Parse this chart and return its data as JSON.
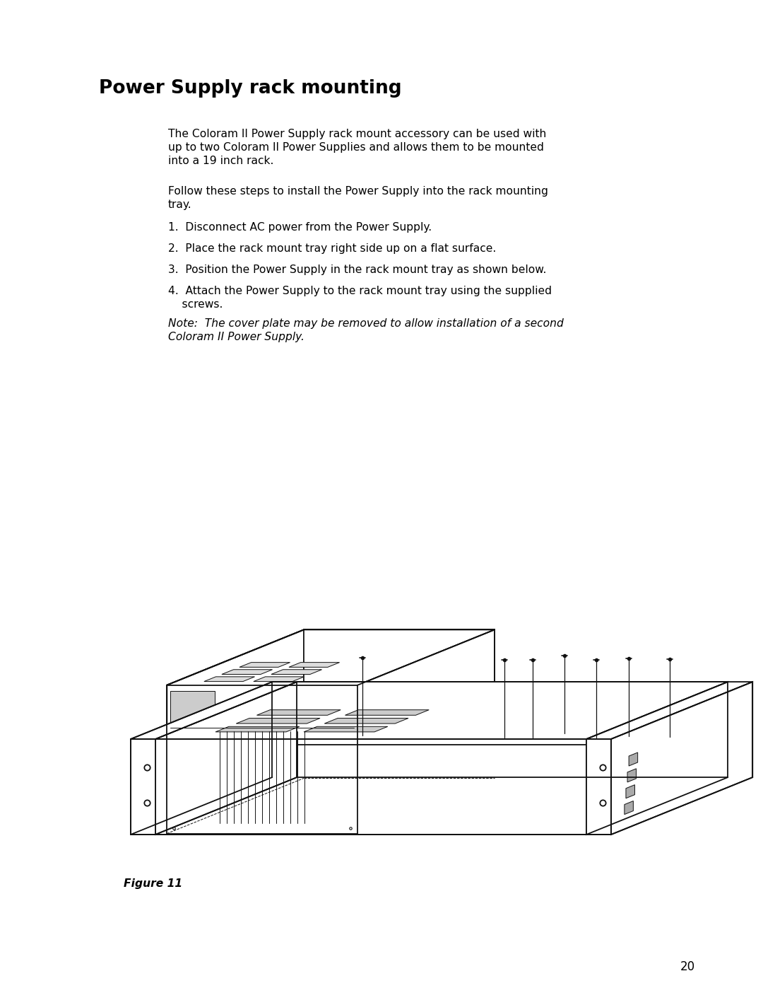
{
  "title": "Power Supply rack mounting",
  "background_color": "#ffffff",
  "text_color": "#000000",
  "page_number": "20",
  "title_fontsize": 19,
  "body_fontsize": 11.2,
  "note_fontsize": 11.2,
  "fig_label_fontsize": 11.2,
  "page_num_fontsize": 12,
  "para1_line1": "The Coloram II Power Supply rack mount accessory can be used with",
  "para1_line2": "up to two Coloram II Power Supplies and allows them to be mounted",
  "para1_line3": "into a 19 inch rack.",
  "para2_line1": "Follow these steps to install the Power Supply into the rack mounting",
  "para2_line2": "tray.",
  "step1": "1.  Disconnect AC power from the Power Supply.",
  "step2": "2.  Place the rack mount tray right side up on a flat surface.",
  "step3": "3.  Position the Power Supply in the rack mount tray as shown below.",
  "step4a": "4.  Attach the Power Supply to the rack mount tray using the supplied",
  "step4b": "    screws.",
  "note_line1": "Note:  The cover plate may be removed to allow installation of a second",
  "note_line2": "Coloram II Power Supply.",
  "fig_label": "Figure 11"
}
